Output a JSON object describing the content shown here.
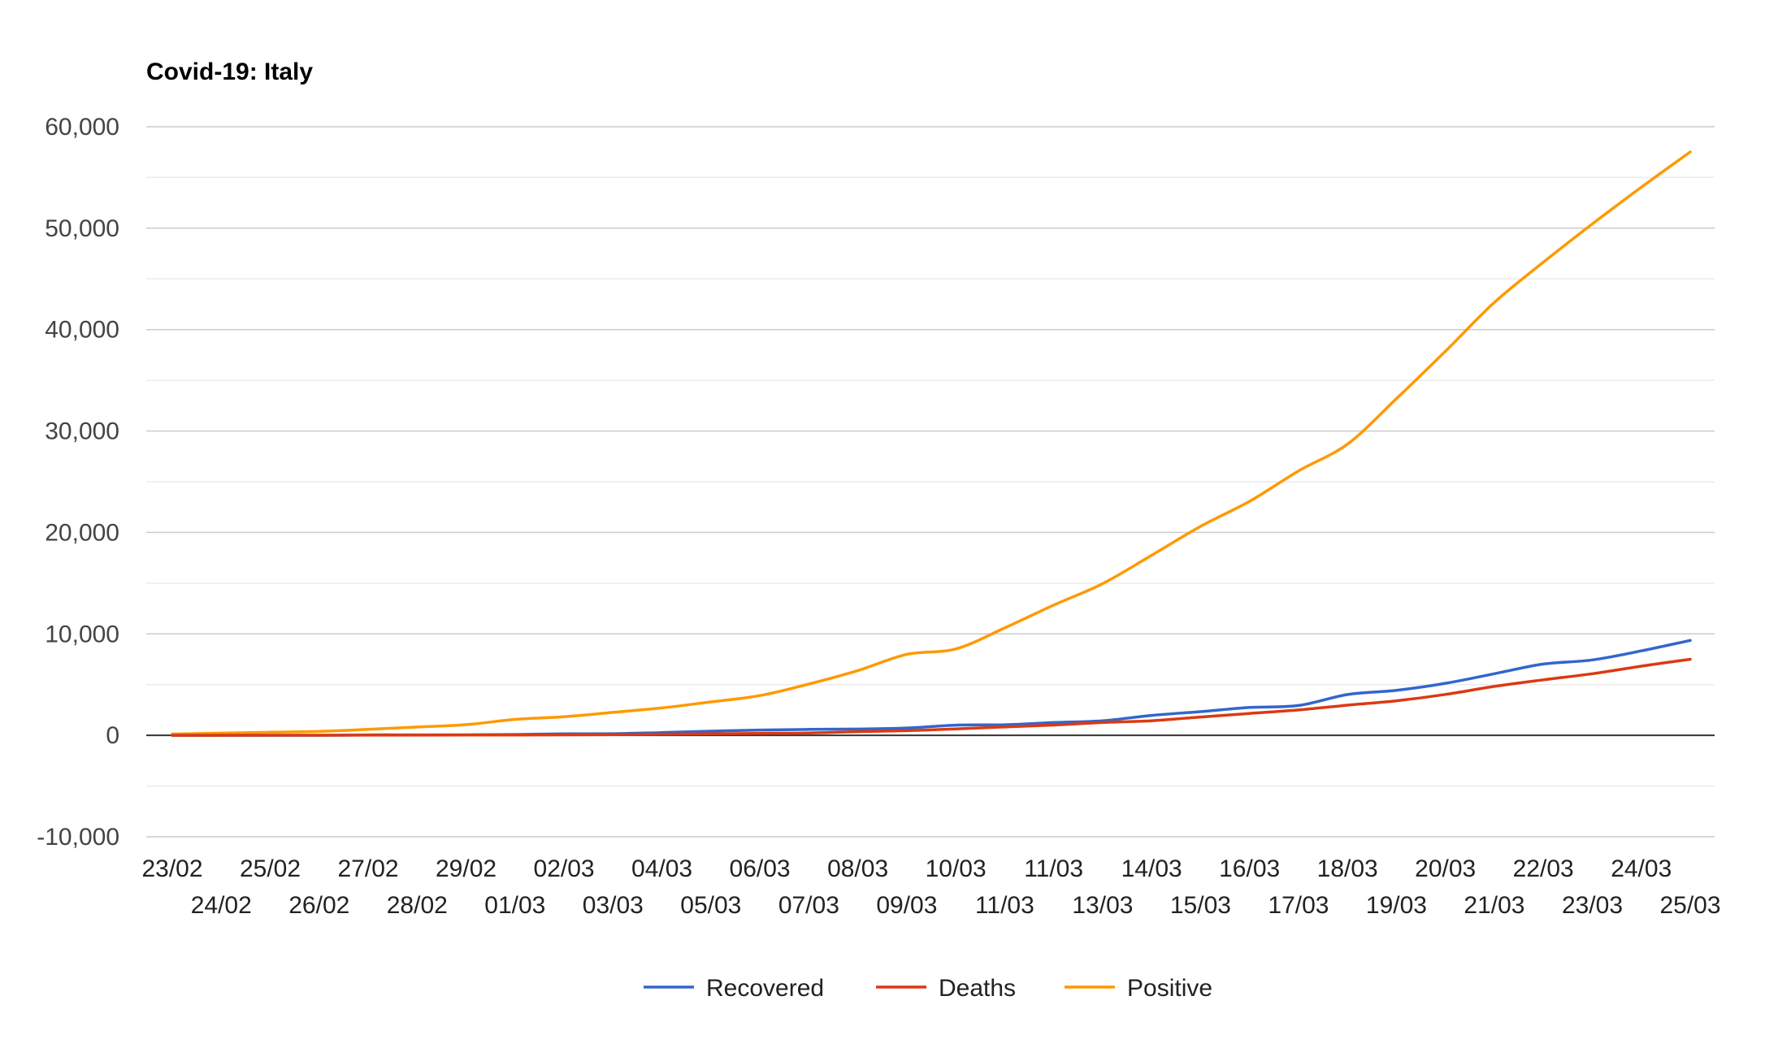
{
  "colors": {
    "recovered": "#3366cc",
    "deaths": "#dc3912",
    "positive": "#ff9900"
  },
  "chart_data": {
    "type": "line",
    "title": "Covid-19: Italy",
    "xlabel": "",
    "ylabel": "",
    "ylim": [
      -10000,
      60000
    ],
    "yticks": [
      60000,
      50000,
      40000,
      30000,
      20000,
      10000,
      0,
      -10000
    ],
    "ytick_labels": [
      "60,000",
      "50,000",
      "40,000",
      "30,000",
      "20,000",
      "10,000",
      "0",
      "-10,000"
    ],
    "grid": true,
    "legend_position": "bottom",
    "categories": [
      "23/02",
      "24/02",
      "25/02",
      "26/02",
      "27/02",
      "28/02",
      "29/02",
      "01/03",
      "02/03",
      "03/03",
      "04/03",
      "05/03",
      "06/03",
      "07/03",
      "08/03",
      "09/03",
      "10/03",
      "11/03",
      "11/03",
      "13/03",
      "14/03",
      "15/03",
      "16/03",
      "17/03",
      "18/03",
      "19/03",
      "20/03",
      "21/03",
      "22/03",
      "23/03",
      "24/03",
      "25/03"
    ],
    "series": [
      {
        "name": "Recovered",
        "color_key": "recovered",
        "values": [
          0,
          0,
          1,
          3,
          45,
          46,
          50,
          83,
          149,
          160,
          276,
          414,
          523,
          589,
          622,
          724,
          1004,
          1045,
          1258,
          1439,
          1966,
          2335,
          2749,
          2941,
          4025,
          4440,
          5129,
          6072,
          7024,
          7432,
          8326,
          9362
        ]
      },
      {
        "name": "Deaths",
        "color_key": "deaths",
        "values": [
          3,
          7,
          10,
          12,
          17,
          21,
          29,
          34,
          52,
          79,
          107,
          148,
          197,
          233,
          366,
          463,
          631,
          827,
          1016,
          1266,
          1441,
          1809,
          2158,
          2503,
          2978,
          3405,
          4032,
          4825,
          5476,
          6077,
          6820,
          7503
        ]
      },
      {
        "name": "Positive",
        "color_key": "positive",
        "values": [
          132,
          221,
          311,
          385,
          588,
          821,
          1049,
          1577,
          1835,
          2263,
          2706,
          3296,
          3916,
          5061,
          6387,
          7985,
          8514,
          10590,
          12839,
          14955,
          17750,
          20603,
          23073,
          26062,
          28710,
          33190,
          37860,
          42681,
          46638,
          50418,
          54030,
          57521
        ]
      }
    ]
  }
}
